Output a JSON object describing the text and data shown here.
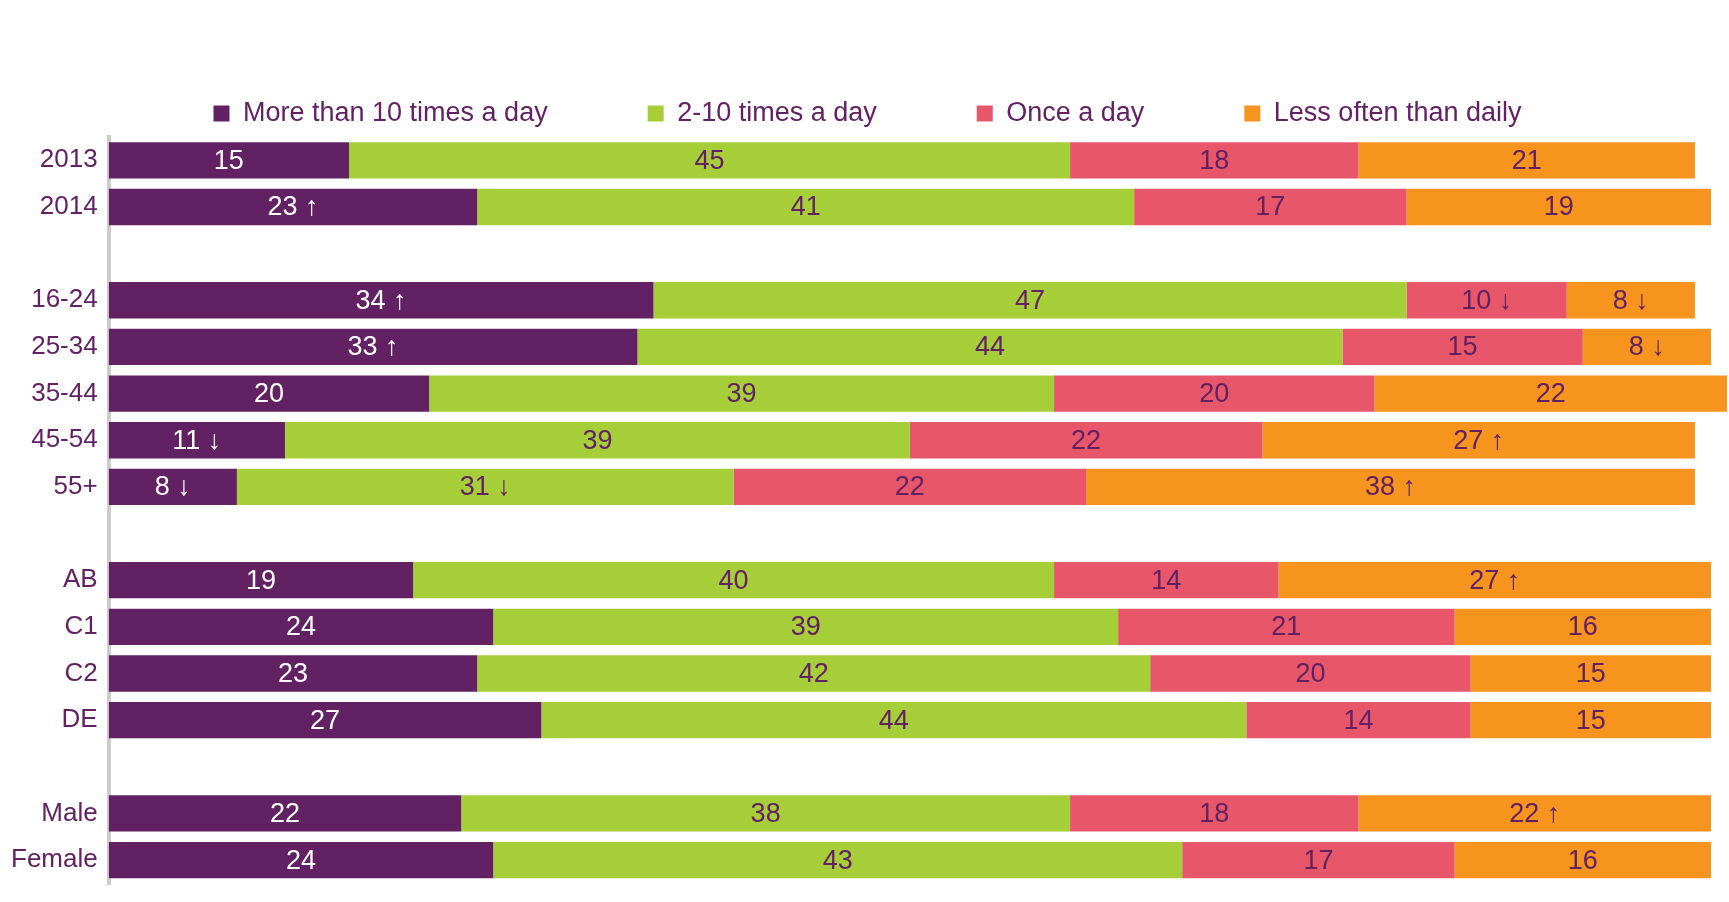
{
  "chart_data": {
    "type": "bar",
    "orientation": "horizontal",
    "stacked": true,
    "legend": "top",
    "grid": false,
    "categories": [
      "2013",
      "2014",
      null,
      "16-24",
      "25-34",
      "35-44",
      "45-54",
      "55+",
      null,
      "AB",
      "C1",
      "C2",
      "DE",
      null,
      "Male",
      "Female"
    ],
    "series": [
      {
        "name": "More than 10 times a day",
        "color": "#622163",
        "values": [
          15,
          23,
          null,
          34,
          33,
          20,
          11,
          8,
          null,
          19,
          24,
          23,
          27,
          null,
          22,
          24
        ],
        "value_labels": [
          "15",
          "23 ↑",
          null,
          "34 ↑",
          "33 ↑",
          "20",
          "11 ↓",
          "8 ↓",
          null,
          "19",
          "24",
          "23",
          "27",
          null,
          "22",
          "24"
        ]
      },
      {
        "name": "2-10 times a day",
        "color": "#a6ce39",
        "values": [
          45,
          41,
          null,
          47,
          44,
          39,
          39,
          31,
          null,
          40,
          39,
          42,
          44,
          null,
          38,
          43
        ],
        "value_labels": [
          "45",
          "41",
          null,
          "47",
          "44",
          "39",
          "39",
          "31 ↓",
          null,
          "40",
          "39",
          "42",
          "44",
          null,
          "38",
          "43"
        ]
      },
      {
        "name": "Once a day",
        "color": "#e8566a",
        "values": [
          18,
          17,
          null,
          10,
          15,
          20,
          22,
          22,
          null,
          14,
          21,
          20,
          14,
          null,
          18,
          17
        ],
        "value_labels": [
          "18",
          "17",
          null,
          "10 ↓",
          "15",
          "20",
          "22",
          "22",
          null,
          "14",
          "21",
          "20",
          "14",
          null,
          "18",
          "17"
        ]
      },
      {
        "name": "Less often than daily",
        "color": "#f7941d",
        "values": [
          21,
          19,
          null,
          8,
          8,
          22,
          27,
          38,
          null,
          27,
          16,
          15,
          15,
          null,
          22,
          16
        ],
        "value_labels": [
          "21",
          "19",
          null,
          "8 ↓",
          "8 ↓",
          "22",
          "27 ↑",
          "38 ↑",
          null,
          "27 ↑",
          "16",
          "15",
          "15",
          null,
          "22 ↑",
          "16"
        ]
      }
    ]
  }
}
